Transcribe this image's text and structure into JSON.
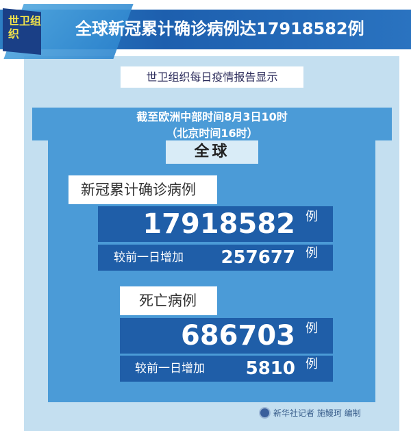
{
  "header": {
    "tag": "世卫组织",
    "title": "全球新冠累计确诊病例达17918582例"
  },
  "subtitle": "世卫组织每日疫情报告显示",
  "date_line1": "截至欧洲中部时间8月3日10时",
  "date_line2": "（北京时间16时）",
  "region": "全球",
  "confirmed": {
    "label": "新冠累计确诊病例",
    "total": "17918582",
    "unit": "例",
    "increase_label": "较前一日增加",
    "increase": "257677"
  },
  "deaths": {
    "label": "死亡病例",
    "total": "686703",
    "unit": "例",
    "increase_label": "较前一日增加",
    "increase": "5810"
  },
  "credit": "新华社记者 施鳗珂 编制",
  "colors": {
    "banner": "#1d5fae",
    "tag_text": "#f2e34a",
    "outer": "#c4dff0",
    "panel": "#4b9bd7",
    "box": "#1f5ea8"
  }
}
